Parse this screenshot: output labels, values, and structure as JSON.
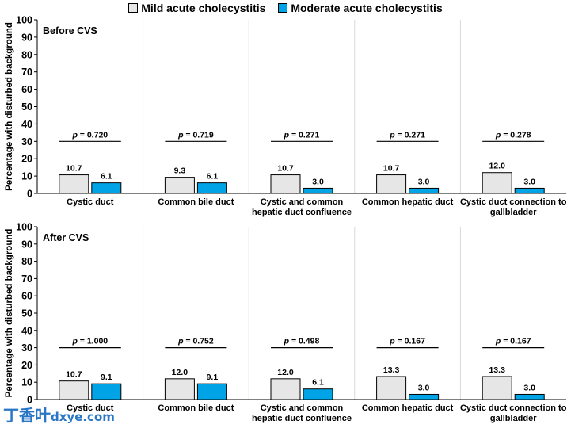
{
  "legend": {
    "mild_label": "Mild acute cholecystitis",
    "moderate_label": "Moderate acute cholecystitis"
  },
  "colors": {
    "mild": "#e6e6e6",
    "moderate": "#00a3e6",
    "edge": "#000000",
    "grid": "#d9d9d9",
    "watermark": "#2a76c6"
  },
  "watermark": {
    "chinese": "丁香叶",
    "domain": "dxye.com"
  },
  "chart_data": [
    {
      "type": "bar",
      "title": "Before CVS",
      "ylabel": "Percentage with disturbed background",
      "ylim": [
        0,
        100
      ],
      "yticks": [
        0,
        10,
        20,
        30,
        40,
        50,
        60,
        70,
        80,
        90,
        100
      ],
      "grid": "vertical separators between categories",
      "categories": [
        [
          "Cystic duct"
        ],
        [
          "Common bile duct"
        ],
        [
          "Cystic and common",
          "hepatic duct confluence"
        ],
        [
          "Common hepatic duct"
        ],
        [
          "Cystic duct connection to",
          "gallbladder"
        ]
      ],
      "series": [
        {
          "name": "Mild acute cholecystitis",
          "values": [
            10.7,
            9.3,
            10.7,
            10.7,
            12.0
          ],
          "labels": [
            "10.7",
            "9.3",
            "10.7",
            "10.7",
            "12.0"
          ]
        },
        {
          "name": "Moderate acute cholecystitis",
          "values": [
            6.1,
            6.1,
            3.0,
            3.0,
            3.0
          ],
          "labels": [
            "6.1",
            "6.1",
            "3.0",
            "3.0",
            "3.0"
          ]
        }
      ],
      "p_values": [
        "0.720",
        "0.719",
        "0.271",
        "0.271",
        "0.278"
      ],
      "p_prefix": "p",
      "p_bracket_y": 30
    },
    {
      "type": "bar",
      "title": "After CVS",
      "ylabel": "Percentage with disturbed background",
      "ylim": [
        0,
        100
      ],
      "yticks": [
        0,
        10,
        20,
        30,
        40,
        50,
        60,
        70,
        80,
        90,
        100
      ],
      "grid": "vertical separators between categories",
      "categories": [
        [
          "Cystic duct"
        ],
        [
          "Common bile duct"
        ],
        [
          "Cystic and common",
          "hepatic duct confluence"
        ],
        [
          "Common hepatic duct"
        ],
        [
          "Cystic duct connection to",
          "gallbladder"
        ]
      ],
      "series": [
        {
          "name": "Mild acute cholecystitis",
          "values": [
            10.7,
            12.0,
            12.0,
            13.3,
            13.3
          ],
          "labels": [
            "10.7",
            "12.0",
            "12.0",
            "13.3",
            "13.3"
          ]
        },
        {
          "name": "Moderate acute cholecystitis",
          "values": [
            9.1,
            9.1,
            6.1,
            3.0,
            3.0
          ],
          "labels": [
            "9.1",
            "9.1",
            "6.1",
            "3.0",
            "3.0"
          ]
        }
      ],
      "p_values": [
        "1.000",
        "0.752",
        "0.498",
        "0.167",
        "0.167"
      ],
      "p_prefix": "p",
      "p_bracket_y": 30
    }
  ]
}
